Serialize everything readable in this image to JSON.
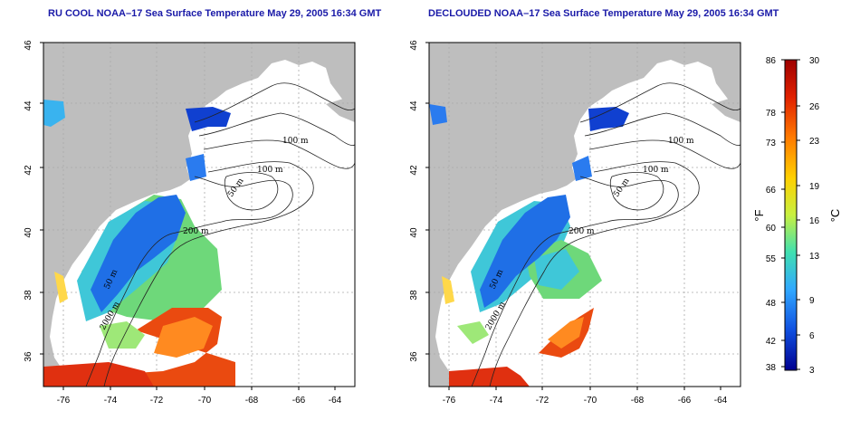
{
  "panels": [
    {
      "title": "RU COOL NOAA–17 Sea Surface Temperature May 29, 2005 16:34 GMT",
      "y_ticks": [
        "46",
        "44",
        "42",
        "40",
        "38",
        "36"
      ],
      "x_ticks": [
        "-76",
        "-74",
        "-72",
        "-70",
        "-68",
        "-66",
        "-64"
      ],
      "contour_labels": [
        "100 m",
        "100 m",
        "50 m",
        "200 m",
        "50 m",
        "2000 m"
      ]
    },
    {
      "title": "DECLOUDED NOAA–17 Sea Surface Temperature May 29, 2005 16:34 GMT",
      "y_ticks": [
        "46",
        "44",
        "42",
        "40",
        "38",
        "36"
      ],
      "x_ticks": [
        "-76",
        "-74",
        "-72",
        "-70",
        "-68",
        "-66",
        "-64"
      ],
      "contour_labels": [
        "100 m",
        "100 m",
        "50 m",
        "200 m",
        "50 m",
        "2000 m"
      ]
    }
  ],
  "colorbar": {
    "fahrenheit_unit": "°F",
    "celsius_unit": "°C",
    "fahrenheit_ticks": [
      "86",
      "78",
      "73",
      "66",
      "60",
      "55",
      "48",
      "42",
      "38"
    ],
    "celsius_ticks": [
      "30",
      "26",
      "23",
      "19",
      "16",
      "13",
      "9",
      "6",
      "3"
    ],
    "colors": [
      "#9e0000",
      "#e02000",
      "#ff7a00",
      "#ffd000",
      "#c8f040",
      "#40e0b0",
      "#30a8ff",
      "#1050e0",
      "#000090"
    ]
  },
  "colors": {
    "land": "#bebebe",
    "title": "#1a1aa8"
  }
}
